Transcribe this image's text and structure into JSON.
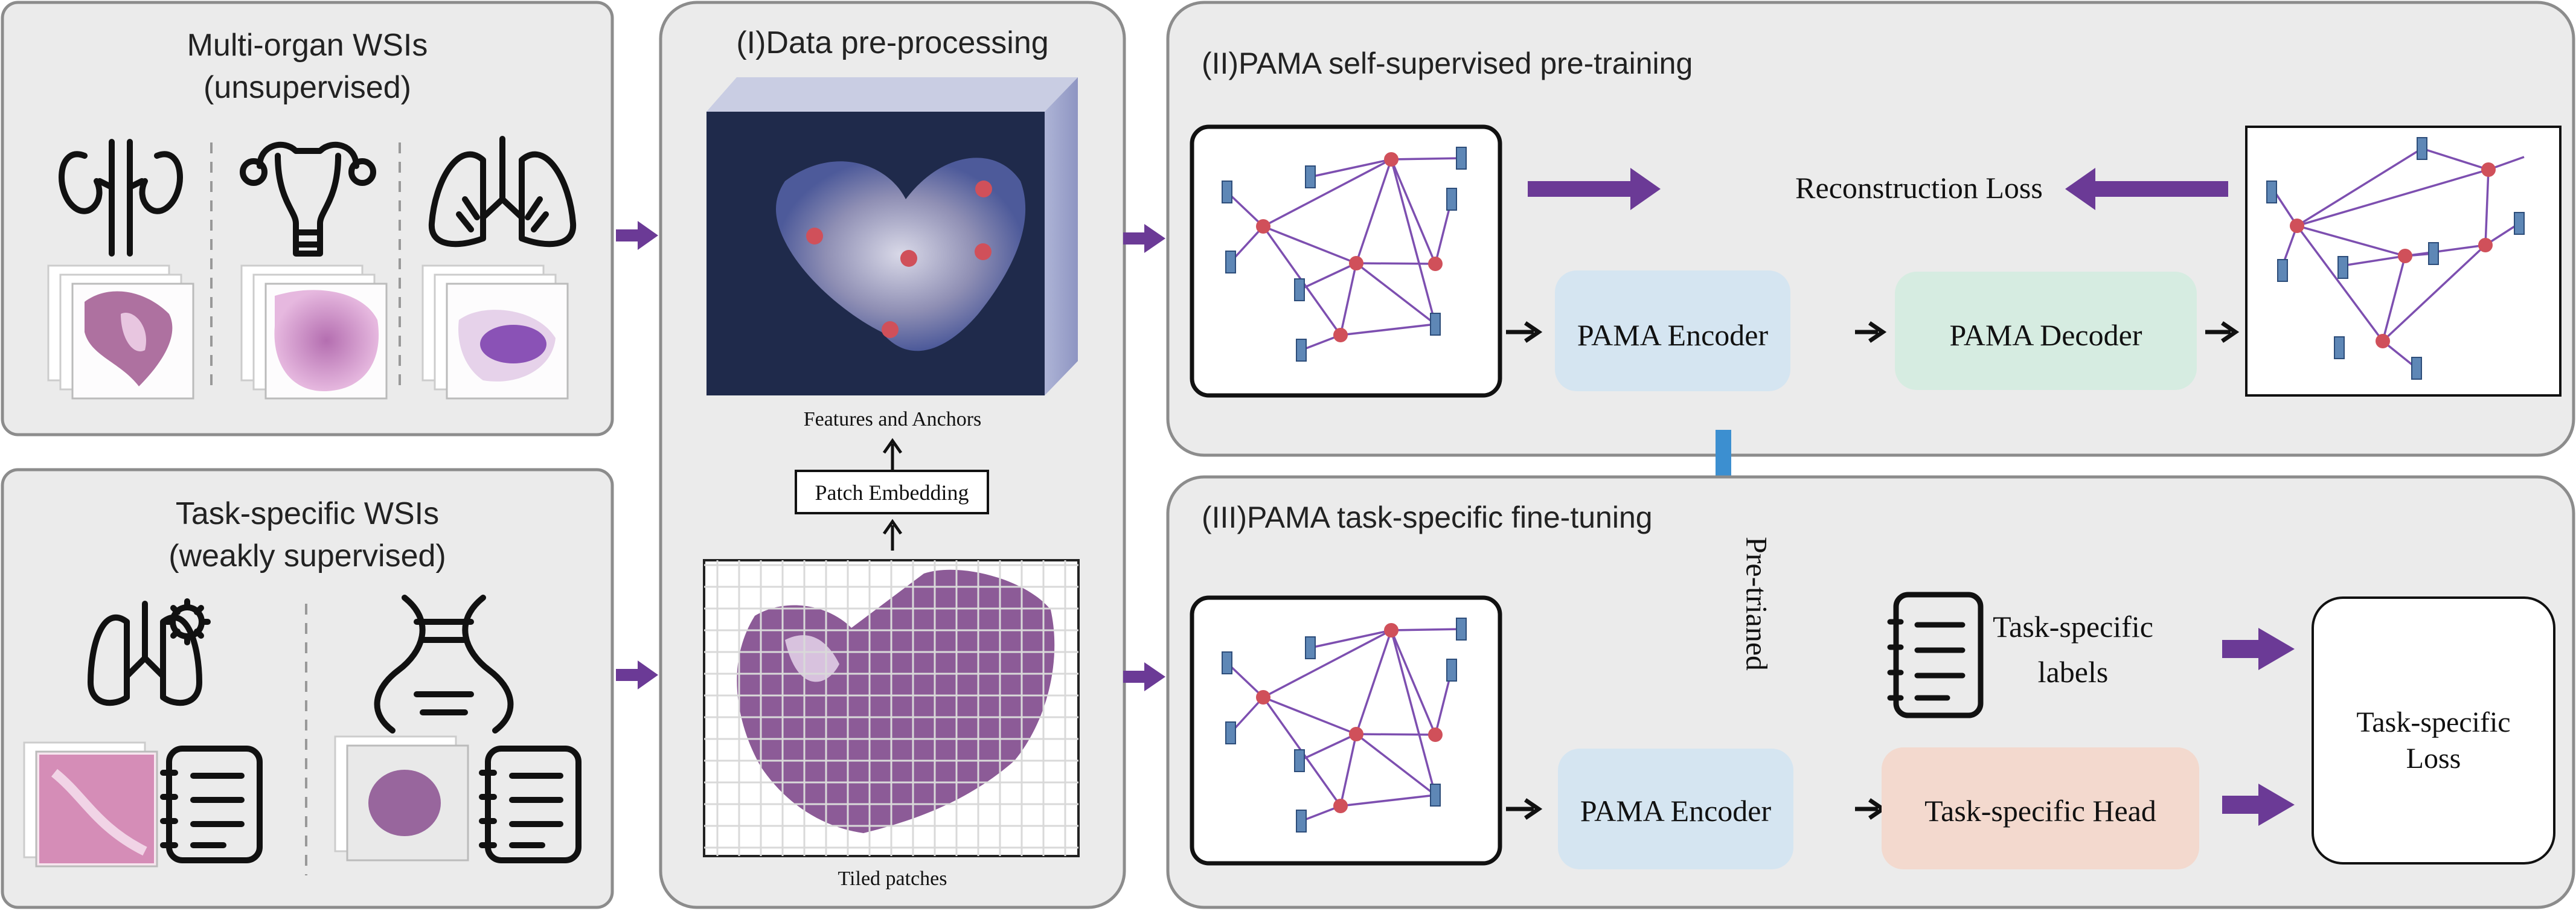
{
  "panels": {
    "multi_organ": {
      "title_line1": "Multi-organ WSIs",
      "title_line2": "(unsupervised)"
    },
    "task_specific_wsis": {
      "title_line1": "Task-specific WSIs",
      "title_line2": "(weakly supervised)"
    },
    "preprocessing": {
      "title": "(I)Data pre-processing",
      "features_label": "Features and Anchors",
      "patch_embedding_label": "Patch Embedding",
      "tiled_patches_label": "Tiled patches"
    },
    "pretraining": {
      "title": "(II)PAMA self-supervised pre-training",
      "reconstruction_loss": "Reconstruction Loss",
      "encoder_label": "PAMA Encoder",
      "decoder_label": "PAMA Decoder"
    },
    "finetuning": {
      "title": "(III)PAMA task-specific fine-tuning",
      "pretrained_label": "Pre-trianed",
      "labels_line1": "Task-specific",
      "labels_line2": "labels",
      "encoder_label": "PAMA Encoder",
      "head_label": "Task-specific Head",
      "loss_line1": "Task-specific",
      "loss_line2": "Loss"
    }
  },
  "icons": [
    "kidney-icon",
    "uterus-icon",
    "lungs-icon",
    "lung-virus-icon",
    "dna-icon",
    "task-list-icon"
  ],
  "colors": {
    "panel_bg": "#ebebeb",
    "panel_border": "#8c8c8c",
    "arrow_purple": "#6b3a96",
    "arrow_blue": "#3c8fd0",
    "encoder_fill": "#d5e5f1",
    "decoder_fill": "#d6ece1",
    "head_fill": "#f3d9ce",
    "graph_edge": "#7d4fb0",
    "anchor_red": "#d0505a",
    "node_blue": "#5e87b6"
  }
}
